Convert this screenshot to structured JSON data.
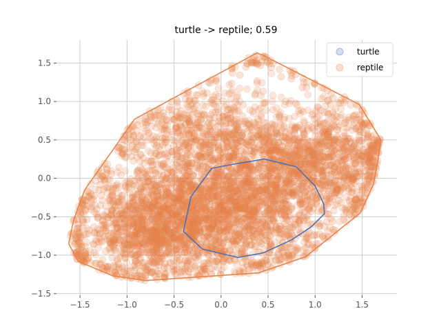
{
  "chart_data": {
    "type": "scatter",
    "title": "turtle -> reptile; 0.59",
    "xlabel": "",
    "ylabel": "",
    "xlim": [
      -1.75,
      1.87
    ],
    "ylim": [
      -1.52,
      1.8
    ],
    "x_ticks": [
      -1.5,
      -1.0,
      -0.5,
      0.0,
      0.5,
      1.0,
      1.5
    ],
    "x_tick_labels": [
      "−1.5",
      "−1.0",
      "−0.5",
      "0.0",
      "0.5",
      "1.0",
      "1.5"
    ],
    "y_ticks": [
      -1.5,
      -1.0,
      -0.5,
      0.0,
      0.5,
      1.0,
      1.5
    ],
    "y_tick_labels": [
      "−1.5",
      "−1.0",
      "−0.5",
      "0.0",
      "0.5",
      "1.0",
      "1.5"
    ],
    "grid": true,
    "legend_position": "top-right",
    "series": [
      {
        "name": "turtle",
        "color": "#4c72b0",
        "hull": [
          [
            -0.32,
            -0.24
          ],
          [
            -0.1,
            0.13
          ],
          [
            0.16,
            0.19
          ],
          [
            0.46,
            0.25
          ],
          [
            0.8,
            0.15
          ],
          [
            1.0,
            -0.1
          ],
          [
            1.09,
            -0.33
          ],
          [
            1.1,
            -0.46
          ],
          [
            0.96,
            -0.63
          ],
          [
            0.75,
            -0.8
          ],
          [
            0.45,
            -0.97
          ],
          [
            0.18,
            -1.03
          ],
          [
            -0.2,
            -0.92
          ],
          [
            -0.4,
            -0.69
          ]
        ]
      },
      {
        "name": "reptile",
        "color": "#e8834a",
        "hull": [
          [
            -0.92,
            0.77
          ],
          [
            0.38,
            1.63
          ],
          [
            0.45,
            1.6
          ],
          [
            1.47,
            0.96
          ],
          [
            1.7,
            0.5
          ],
          [
            1.67,
            0.25
          ],
          [
            1.62,
            -0.08
          ],
          [
            1.48,
            -0.45
          ],
          [
            0.9,
            -1.02
          ],
          [
            0.4,
            -1.23
          ],
          [
            -0.8,
            -1.33
          ],
          [
            -1.15,
            -1.27
          ],
          [
            -1.52,
            -1.08
          ],
          [
            -1.62,
            -0.85
          ],
          [
            -1.57,
            -0.55
          ],
          [
            -1.45,
            -0.15
          ]
        ],
        "density_centers": [
          {
            "x": 0.0,
            "y": -0.4,
            "sx": 0.55,
            "sy": 0.45,
            "n": 2200
          },
          {
            "x": -0.75,
            "y": -0.65,
            "sx": 0.35,
            "sy": 0.3,
            "n": 900
          },
          {
            "x": 0.8,
            "y": 0.2,
            "sx": 0.4,
            "sy": 0.35,
            "n": 800
          },
          {
            "x": -0.2,
            "y": 0.6,
            "sx": 0.5,
            "sy": 0.35,
            "n": 700
          },
          {
            "x": 1.3,
            "y": 0.3,
            "sx": 0.25,
            "sy": 0.35,
            "n": 350
          }
        ]
      }
    ]
  }
}
